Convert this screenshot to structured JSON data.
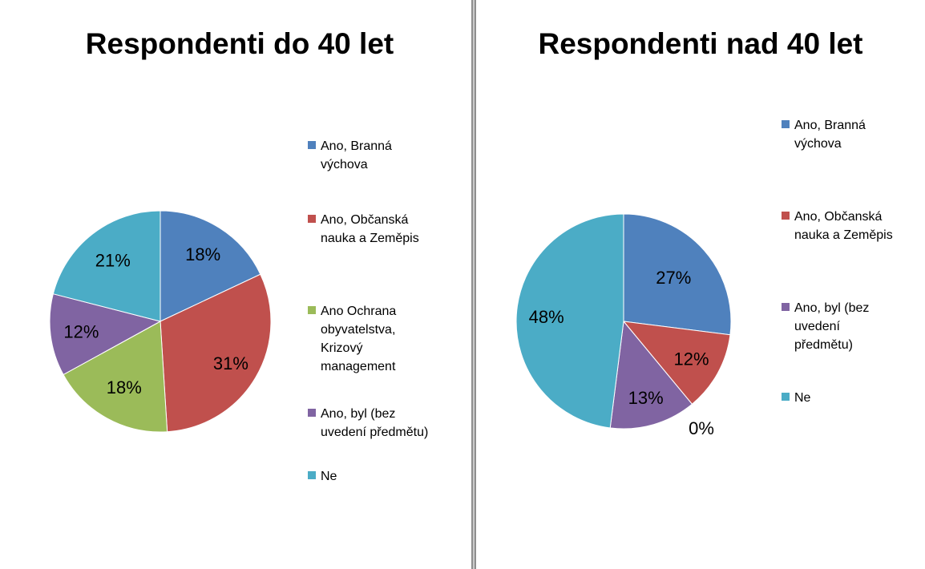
{
  "chart_data": [
    {
      "type": "pie",
      "title": "Respondenti do 40 let",
      "categories": [
        "Ano, Branná\nvýchova",
        "Ano, Občanská\nnauka a Zeměpis",
        "Ano Ochrana\nobyvatelstva,\nKrizový\nmanagement",
        "Ano, byl (bez\nuvedení předmětu)",
        "Ne"
      ],
      "values": [
        18,
        31,
        18,
        12,
        21
      ],
      "data_labels": [
        "18%",
        "31%",
        "18%",
        "12%",
        "21%"
      ],
      "colors": [
        "#4f81bd",
        "#c0504d",
        "#9bbb59",
        "#8064a2",
        "#4bacc6"
      ],
      "legend_position": "right"
    },
    {
      "type": "pie",
      "title": "Respondenti nad 40 let",
      "categories": [
        "Ano, Branná\nvýchova",
        "Ano, Občanská\nnauka a Zeměpis",
        "Ano, byl (bez\nuvedení\npředmětu)",
        "Ne"
      ],
      "values": [
        27,
        12,
        13,
        48
      ],
      "data_labels": [
        "27%",
        "12%",
        "13%",
        "48%"
      ],
      "extra_labels": [
        "0%"
      ],
      "colors": [
        "#4f81bd",
        "#c0504d",
        "#8064a2",
        "#4bacc6"
      ],
      "legend_position": "right"
    }
  ]
}
